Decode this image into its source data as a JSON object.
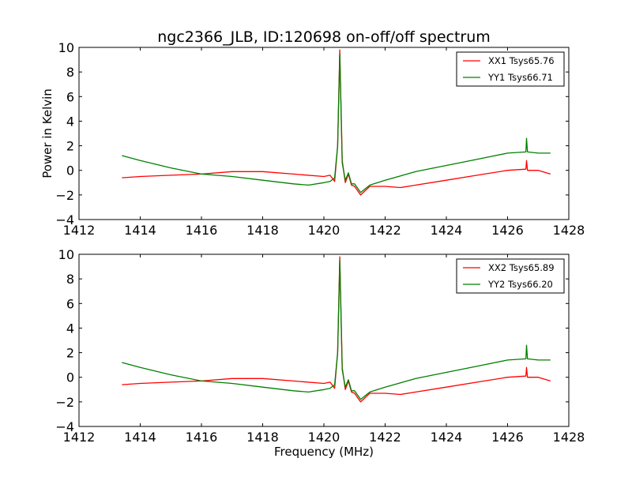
{
  "chart_data": {
    "type": "line",
    "title": "ngc2366_JLB, ID:120698 on-off/off spectrum",
    "xlabel": "Frequency (MHz)",
    "ylabel": "Power in Kelvin",
    "xlim": [
      1412,
      1428
    ],
    "ylim": [
      -4,
      10
    ],
    "xticks": [
      "1412",
      "1414",
      "1416",
      "1418",
      "1420",
      "1422",
      "1424",
      "1426",
      "1428"
    ],
    "yticks": [
      "−4",
      "−2",
      "0",
      "2",
      "4",
      "6",
      "8",
      "10"
    ],
    "grid": false,
    "legend_position": "top-right",
    "colors": {
      "XX": "#ff0000",
      "YY": "#008000"
    },
    "panels": [
      {
        "series": [
          {
            "name": "XX1 Tsys65.76",
            "color": "#ff0000",
            "points": [
              [
                1413.4,
                -0.6
              ],
              [
                1414,
                -0.5
              ],
              [
                1415,
                -0.4
              ],
              [
                1416,
                -0.3
              ],
              [
                1417,
                -0.1
              ],
              [
                1418,
                -0.1
              ],
              [
                1419,
                -0.3
              ],
              [
                1420,
                -0.5
              ],
              [
                1420.2,
                -0.4
              ],
              [
                1420.35,
                -0.9
              ],
              [
                1420.45,
                2.0
              ],
              [
                1420.52,
                9.8
              ],
              [
                1420.6,
                0.8
              ],
              [
                1420.7,
                -1.0
              ],
              [
                1420.8,
                -0.3
              ],
              [
                1420.9,
                -1.2
              ],
              [
                1421.0,
                -1.3
              ],
              [
                1421.2,
                -2.0
              ],
              [
                1421.5,
                -1.3
              ],
              [
                1422,
                -1.3
              ],
              [
                1422.5,
                -1.4
              ],
              [
                1423,
                -1.2
              ],
              [
                1424,
                -0.8
              ],
              [
                1425,
                -0.4
              ],
              [
                1426,
                0.0
              ],
              [
                1426.6,
                0.1
              ],
              [
                1426.62,
                0.8
              ],
              [
                1426.65,
                0.0
              ],
              [
                1427,
                0.0
              ],
              [
                1427.4,
                -0.3
              ]
            ]
          },
          {
            "name": "YY1 Tsys66.71",
            "color": "#008000",
            "points": [
              [
                1413.4,
                1.2
              ],
              [
                1414,
                0.8
              ],
              [
                1415,
                0.2
              ],
              [
                1416,
                -0.3
              ],
              [
                1417,
                -0.5
              ],
              [
                1418,
                -0.8
              ],
              [
                1419,
                -1.1
              ],
              [
                1419.5,
                -1.2
              ],
              [
                1420,
                -1.0
              ],
              [
                1420.2,
                -0.9
              ],
              [
                1420.35,
                -0.6
              ],
              [
                1420.45,
                2.0
              ],
              [
                1420.52,
                9.5
              ],
              [
                1420.6,
                0.6
              ],
              [
                1420.7,
                -0.8
              ],
              [
                1420.8,
                -0.2
              ],
              [
                1420.9,
                -1.1
              ],
              [
                1421.0,
                -1.1
              ],
              [
                1421.2,
                -1.8
              ],
              [
                1421.5,
                -1.2
              ],
              [
                1422,
                -0.8
              ],
              [
                1423,
                -0.1
              ],
              [
                1424,
                0.4
              ],
              [
                1425,
                0.9
              ],
              [
                1426,
                1.4
              ],
              [
                1426.6,
                1.5
              ],
              [
                1426.62,
                2.6
              ],
              [
                1426.65,
                1.5
              ],
              [
                1427,
                1.4
              ],
              [
                1427.4,
                1.4
              ]
            ]
          }
        ]
      },
      {
        "series": [
          {
            "name": "XX2 Tsys65.89",
            "color": "#ff0000",
            "points": [
              [
                1413.4,
                -0.6
              ],
              [
                1414,
                -0.5
              ],
              [
                1415,
                -0.4
              ],
              [
                1416,
                -0.3
              ],
              [
                1417,
                -0.1
              ],
              [
                1418,
                -0.1
              ],
              [
                1419,
                -0.3
              ],
              [
                1420,
                -0.5
              ],
              [
                1420.2,
                -0.4
              ],
              [
                1420.35,
                -0.9
              ],
              [
                1420.45,
                2.0
              ],
              [
                1420.52,
                9.8
              ],
              [
                1420.6,
                0.8
              ],
              [
                1420.7,
                -1.0
              ],
              [
                1420.8,
                -0.3
              ],
              [
                1420.9,
                -1.2
              ],
              [
                1421.0,
                -1.3
              ],
              [
                1421.2,
                -2.0
              ],
              [
                1421.5,
                -1.3
              ],
              [
                1422,
                -1.3
              ],
              [
                1422.5,
                -1.4
              ],
              [
                1423,
                -1.2
              ],
              [
                1424,
                -0.8
              ],
              [
                1425,
                -0.4
              ],
              [
                1426,
                0.0
              ],
              [
                1426.6,
                0.1
              ],
              [
                1426.62,
                0.8
              ],
              [
                1426.65,
                0.0
              ],
              [
                1427,
                0.0
              ],
              [
                1427.4,
                -0.3
              ]
            ]
          },
          {
            "name": "YY2 Tsys66.20",
            "color": "#008000",
            "points": [
              [
                1413.4,
                1.2
              ],
              [
                1414,
                0.8
              ],
              [
                1415,
                0.2
              ],
              [
                1416,
                -0.3
              ],
              [
                1417,
                -0.5
              ],
              [
                1418,
                -0.8
              ],
              [
                1419,
                -1.1
              ],
              [
                1419.5,
                -1.2
              ],
              [
                1420,
                -1.0
              ],
              [
                1420.2,
                -0.9
              ],
              [
                1420.35,
                -0.6
              ],
              [
                1420.45,
                2.0
              ],
              [
                1420.52,
                9.5
              ],
              [
                1420.6,
                0.6
              ],
              [
                1420.7,
                -0.8
              ],
              [
                1420.8,
                -0.2
              ],
              [
                1420.9,
                -1.1
              ],
              [
                1421.0,
                -1.1
              ],
              [
                1421.2,
                -1.8
              ],
              [
                1421.5,
                -1.2
              ],
              [
                1422,
                -0.8
              ],
              [
                1423,
                -0.1
              ],
              [
                1424,
                0.4
              ],
              [
                1425,
                0.9
              ],
              [
                1426,
                1.4
              ],
              [
                1426.6,
                1.5
              ],
              [
                1426.62,
                2.6
              ],
              [
                1426.65,
                1.5
              ],
              [
                1427,
                1.4
              ],
              [
                1427.4,
                1.4
              ]
            ]
          }
        ]
      }
    ]
  }
}
